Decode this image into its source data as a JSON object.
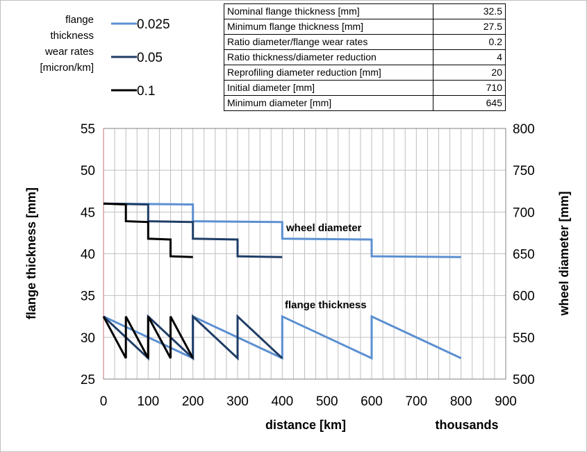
{
  "colors": {
    "series_0025": "#5b8fd1",
    "series_005": "#1f3d66",
    "series_01": "#000000",
    "grid": "#bfbfbf",
    "axis": "#808080",
    "y_axis_line": "#d9a0a0"
  },
  "legend": {
    "title_lines": [
      "flange",
      "thickness",
      "wear rates",
      "[micron/km]"
    ],
    "items": [
      {
        "label": "0.025",
        "color": "#5b8fd1"
      },
      {
        "label": "0.05",
        "color": "#1f3d66"
      },
      {
        "label": "0.1",
        "color": "#000000"
      }
    ]
  },
  "parameters": [
    {
      "name": "Nominal flange thickness [mm]",
      "value": "32.5"
    },
    {
      "name": "Minimum flange thickness [mm]",
      "value": "27.5"
    },
    {
      "name": "Ratio diameter/flange wear rates",
      "value": "0.2"
    },
    {
      "name": "Ratio thickness/diameter reduction",
      "value": "4"
    },
    {
      "name": "Reprofiling diameter reduction [mm]",
      "value": "20"
    },
    {
      "name": "Initial diameter [mm]",
      "value": "710"
    },
    {
      "name": "Minimum diameter [mm]",
      "value": "645"
    }
  ],
  "chart_data": {
    "type": "line",
    "xlabel": "distance [km]",
    "x_unit_label": "thousands",
    "ylabel": "flange thickness [mm]",
    "y2label": "wheel diameter [mm]",
    "xlim": [
      0,
      900
    ],
    "ylim": [
      25,
      55
    ],
    "y2lim": [
      500,
      800
    ],
    "x_ticks": [
      "0",
      "100",
      "200",
      "300",
      "400",
      "500",
      "600",
      "700",
      "800",
      "900"
    ],
    "y_ticks": [
      "25",
      "30",
      "35",
      "40",
      "45",
      "50",
      "55"
    ],
    "y2_ticks": [
      "500",
      "550",
      "600",
      "650",
      "700",
      "750",
      "800"
    ],
    "grid": true,
    "minor_x_step": 25,
    "annotations": [
      {
        "text": "wheel diameter",
        "x": 405,
        "y": 43
      },
      {
        "text": "flange thickness",
        "x": 405,
        "y": 34
      }
    ],
    "series": [
      {
        "name": "0.025",
        "kind": "flange",
        "axis": "left",
        "color": "#5b8fd1",
        "points": [
          [
            0,
            32.5
          ],
          [
            200,
            27.5
          ],
          [
            200,
            32.5
          ],
          [
            400,
            27.5
          ],
          [
            400,
            32.5
          ],
          [
            600,
            27.5
          ],
          [
            600,
            32.5
          ],
          [
            800,
            27.5
          ]
        ]
      },
      {
        "name": "0.05",
        "kind": "flange",
        "axis": "left",
        "color": "#1f3d66",
        "points": [
          [
            0,
            32.5
          ],
          [
            100,
            27.5
          ],
          [
            100,
            32.5
          ],
          [
            200,
            27.5
          ],
          [
            200,
            32.5
          ],
          [
            300,
            27.5
          ],
          [
            300,
            32.5
          ],
          [
            400,
            27.5
          ]
        ]
      },
      {
        "name": "0.1",
        "kind": "flange",
        "axis": "left",
        "color": "#000000",
        "points": [
          [
            0,
            32.5
          ],
          [
            50,
            27.5
          ],
          [
            50,
            32.5
          ],
          [
            100,
            27.5
          ],
          [
            100,
            32.5
          ],
          [
            150,
            27.5
          ],
          [
            150,
            32.5
          ],
          [
            200,
            27.5
          ]
        ]
      },
      {
        "name": "0.025",
        "kind": "diameter",
        "axis": "right",
        "color": "#5b8fd1",
        "points": [
          [
            0,
            710
          ],
          [
            200,
            709
          ],
          [
            200,
            689
          ],
          [
            400,
            688
          ],
          [
            400,
            668
          ],
          [
            600,
            667
          ],
          [
            600,
            647
          ],
          [
            800,
            646
          ]
        ]
      },
      {
        "name": "0.05",
        "kind": "diameter",
        "axis": "right",
        "color": "#1f3d66",
        "points": [
          [
            0,
            710
          ],
          [
            100,
            709
          ],
          [
            100,
            689
          ],
          [
            200,
            688
          ],
          [
            200,
            668
          ],
          [
            300,
            667
          ],
          [
            300,
            647
          ],
          [
            400,
            646
          ]
        ]
      },
      {
        "name": "0.1",
        "kind": "diameter",
        "axis": "right",
        "color": "#000000",
        "points": [
          [
            0,
            710
          ],
          [
            50,
            709
          ],
          [
            50,
            689
          ],
          [
            100,
            688
          ],
          [
            100,
            668
          ],
          [
            150,
            667
          ],
          [
            150,
            647
          ],
          [
            200,
            646
          ]
        ]
      }
    ]
  }
}
